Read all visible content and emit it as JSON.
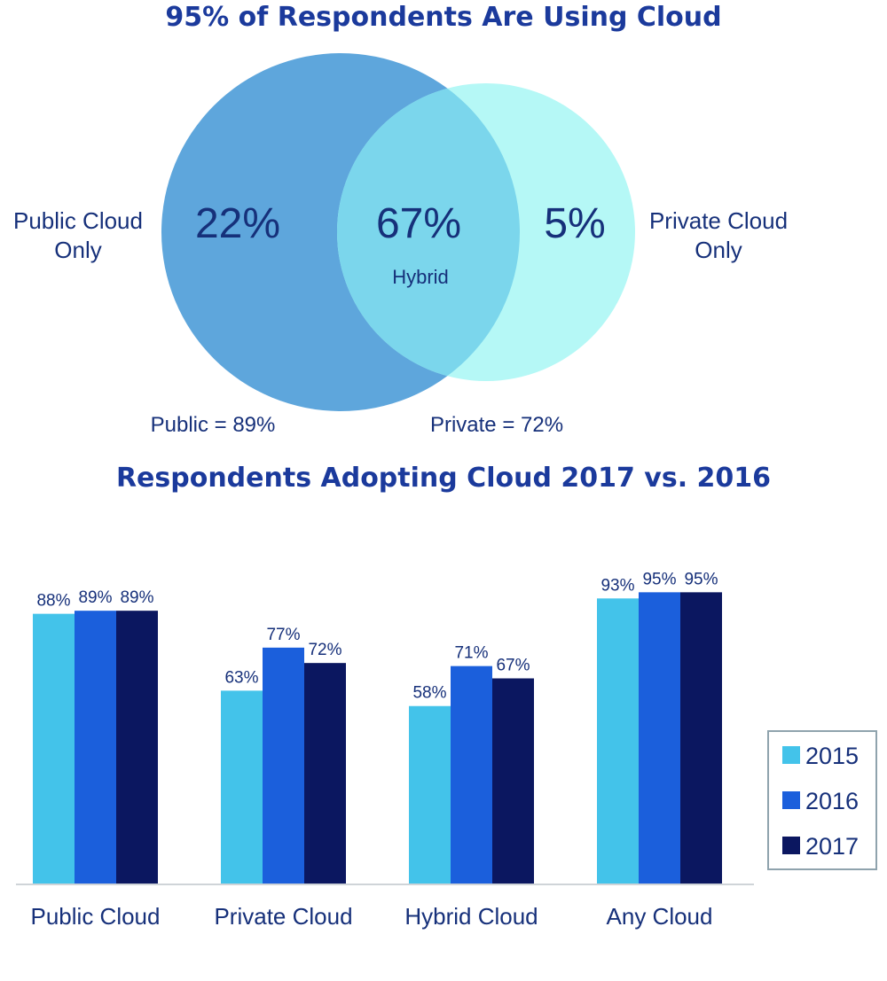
{
  "venn": {
    "title": "95% of Respondents Are Using Cloud",
    "left_label_line1": "Public Cloud",
    "left_label_line2": "Only",
    "right_label_line1": "Private Cloud",
    "right_label_line2": "Only",
    "left_pct": "22%",
    "center_pct": "67%",
    "center_label": "Hybrid",
    "right_pct": "5%",
    "public_total": "Public = 89%",
    "private_total": "Private = 72%",
    "colors": {
      "public": "#5ea6dc",
      "private": "#b5f8f6",
      "overlap": "#7bd6ec",
      "text": "#16307a"
    }
  },
  "chart_data": {
    "type": "bar",
    "title": "Respondents Adopting Cloud 2017 vs. 2016",
    "categories": [
      "Public Cloud",
      "Private Cloud",
      "Hybrid Cloud",
      "Any Cloud"
    ],
    "series": [
      {
        "name": "2015",
        "color": "#43c3ea",
        "values": [
          88,
          63,
          58,
          93
        ],
        "labels": [
          "88%",
          "63%",
          "58%",
          "93%"
        ]
      },
      {
        "name": "2016",
        "color": "#1b5fdc",
        "values": [
          89,
          77,
          71,
          95
        ],
        "labels": [
          "89%",
          "77%",
          "71%",
          "95%"
        ]
      },
      {
        "name": "2017",
        "color": "#0b1760",
        "values": [
          89,
          72,
          67,
          95
        ],
        "labels": [
          "89%",
          "72%",
          "67%",
          "95%"
        ]
      }
    ],
    "ylim": [
      0,
      100
    ],
    "grid": false,
    "legend_position": "right"
  }
}
